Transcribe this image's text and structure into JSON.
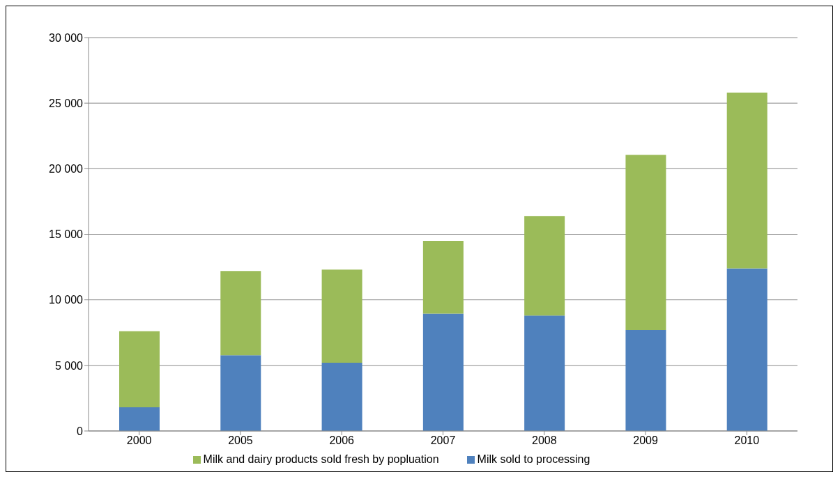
{
  "chart_data": {
    "type": "bar",
    "stacked": true,
    "categories": [
      "2000",
      "2005",
      "2006",
      "2007",
      "2008",
      "2009",
      "2010"
    ],
    "series": [
      {
        "name": "Milk sold to processing",
        "color": "#4f81bd",
        "values": [
          1800,
          5770,
          5200,
          8950,
          8800,
          7700,
          12400
        ]
      },
      {
        "name": "Milk and dairy products sold fresh by popluation",
        "color": "#9bbb59",
        "values": [
          5800,
          6430,
          7100,
          5550,
          7600,
          13350,
          13400
        ]
      }
    ],
    "ylim": [
      0,
      30000
    ],
    "yticks": [
      0,
      {
        "value": 5000,
        "label": "5 000"
      },
      {
        "value": 10000,
        "label": "10 000"
      },
      {
        "value": 15000,
        "label": "15 000"
      },
      {
        "value": 20000,
        "label": "20 000"
      },
      {
        "value": 25000,
        "label": "25 000"
      },
      {
        "value": 30000,
        "label": "30 000"
      }
    ],
    "grid": "y",
    "legend": "bottom"
  }
}
